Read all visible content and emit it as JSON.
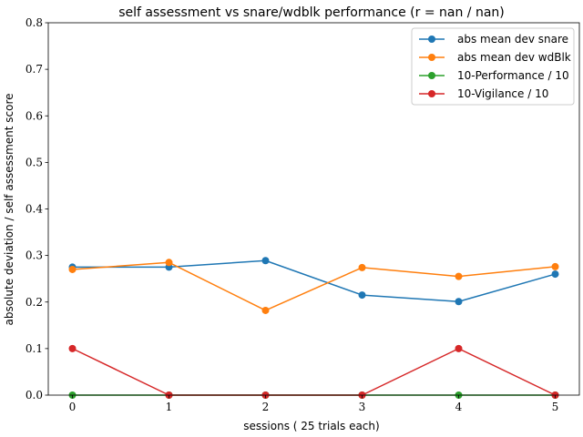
{
  "chart_data": {
    "type": "line",
    "title": "self assessment vs snare/wdblk performance (r = nan / nan)",
    "xlabel": "sessions ( 25 trials each)",
    "ylabel": "absolute deviation / self assessment score",
    "x": [
      0,
      1,
      2,
      3,
      4,
      5
    ],
    "x_ticks": [
      "0",
      "1",
      "2",
      "3",
      "4",
      "5"
    ],
    "y_ticks": [
      "0.0",
      "0.1",
      "0.2",
      "0.3",
      "0.4",
      "0.5",
      "0.6",
      "0.7",
      "0.8"
    ],
    "xlim": [
      -0.25,
      5.25
    ],
    "ylim": [
      0.0,
      0.8
    ],
    "grid": false,
    "legend_position": "top-right",
    "series": [
      {
        "name": "abs mean dev snare",
        "color": "#1f77b4",
        "values": [
          0.275,
          0.275,
          0.289,
          0.215,
          0.201,
          0.26
        ]
      },
      {
        "name": "abs mean dev wdBlk",
        "color": "#ff7f0e",
        "values": [
          0.27,
          0.285,
          0.182,
          0.274,
          0.255,
          0.276
        ]
      },
      {
        "name": "10-Performance / 10",
        "color": "#2ca02c",
        "values": [
          0.0,
          0.0,
          0.0,
          0.0,
          0.0,
          0.0
        ]
      },
      {
        "name": "10-Vigilance / 10",
        "color": "#d62728",
        "values": [
          0.1,
          0.0,
          0.0,
          0.0,
          0.1,
          0.0
        ]
      }
    ]
  }
}
